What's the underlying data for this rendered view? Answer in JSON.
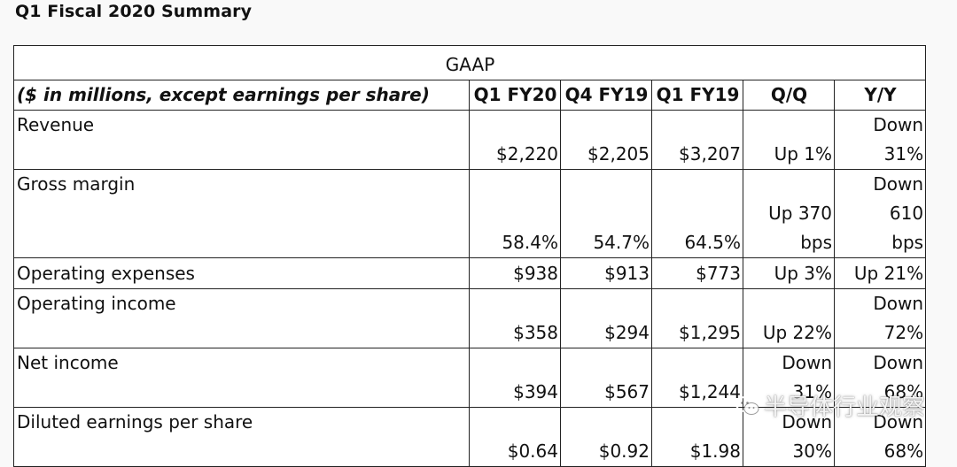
{
  "title": "Q1 Fiscal 2020 Summary",
  "table": {
    "section": "GAAP",
    "headers": [
      "($ in millions, except earnings per share)",
      "Q1 FY20",
      "Q4 FY19",
      "Q1 FY19",
      "Q/Q",
      "Y/Y"
    ],
    "rows": [
      {
        "label": "Revenue",
        "cells": [
          "$2,220",
          "$2,205",
          "$3,207",
          "Up 1%",
          "Down\n31%"
        ]
      },
      {
        "label": "Gross margin",
        "cells": [
          "58.4%",
          "54.7%",
          "64.5%",
          "Up 370\nbps",
          "Down 610\nbps"
        ]
      },
      {
        "label": "Operating expenses",
        "cells": [
          "$938",
          "$913",
          "$773",
          "Up 3%",
          "Up 21%"
        ]
      },
      {
        "label": "Operating income",
        "cells": [
          "$358",
          "$294",
          "$1,295",
          "Up 22%",
          "Down\n72%"
        ]
      },
      {
        "label": "Net income",
        "cells": [
          "$394",
          "$567",
          "$1,244",
          "Down\n31%",
          "Down\n68%"
        ]
      },
      {
        "label": "Diluted earnings per share",
        "cells": [
          "$0.64",
          "$0.92",
          "$1.98",
          "Down\n30%",
          "Down\n68%"
        ]
      }
    ]
  },
  "watermark": {
    "text": "半导体行业观察",
    "icon": "wechat-icon"
  }
}
